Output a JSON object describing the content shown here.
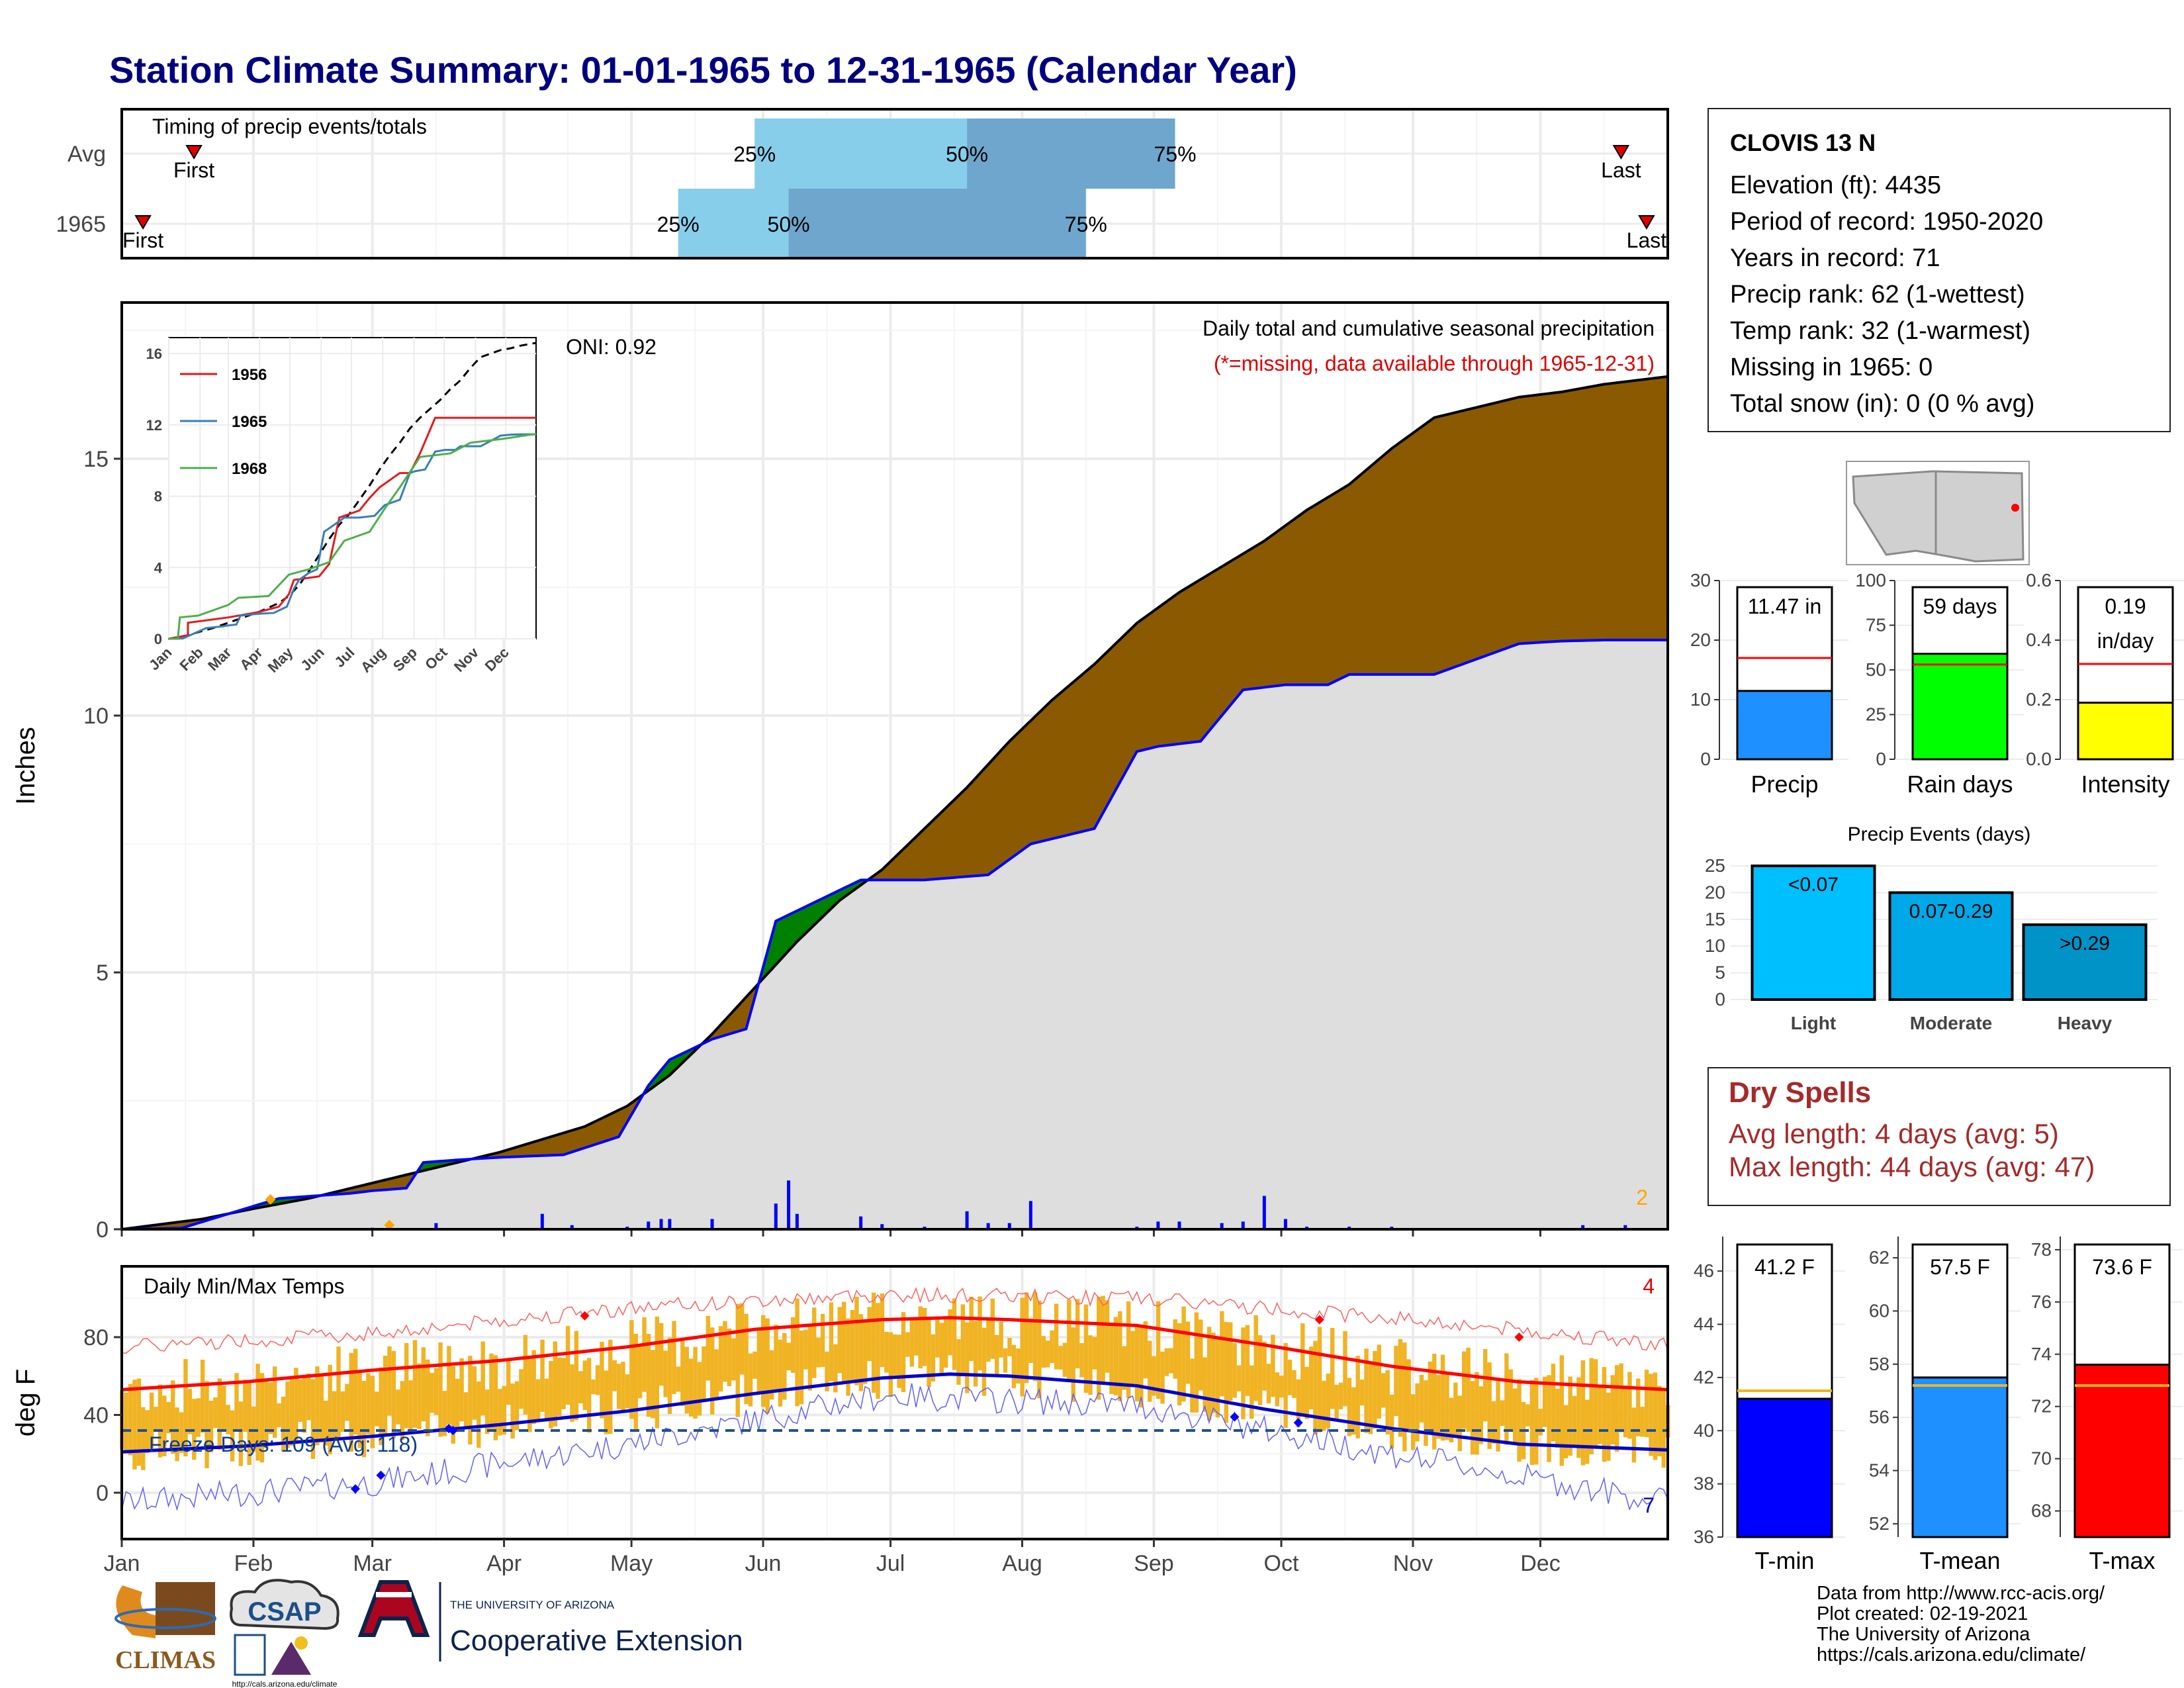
{
  "page": {
    "title": "Station Climate Summary: 01-01-1965 to 12-31-1965 (Calendar Year)"
  },
  "timing_panel": {
    "title": "Timing of precip events/totals",
    "rows": [
      "Avg",
      "1965"
    ],
    "first_label": "First",
    "last_label": "Last",
    "pct_labels": [
      "25%",
      "50%",
      "75%"
    ],
    "avg": {
      "first_day": 18,
      "p25": 150,
      "p50": 200,
      "p75": 249,
      "last_day": 354
    },
    "y1965": {
      "first_day": 6,
      "p25": 132,
      "p50": 158,
      "p75": 228,
      "last_day": 360
    }
  },
  "precip_panel": {
    "ylabel": "Inches",
    "title": "Daily total and cumulative seasonal precipitation",
    "note": "(*=missing, data available through 1965-12-31)",
    "oni": "ONI: 0.92",
    "corner_count": "2",
    "yticks": [
      "0",
      "5",
      "10",
      "15"
    ]
  },
  "inset": {
    "yticks": [
      "0",
      "4",
      "8",
      "12",
      "16"
    ],
    "months": [
      "Jan",
      "Feb",
      "Mar",
      "Apr",
      "May",
      "Jun",
      "Jul",
      "Aug",
      "Sep",
      "Oct",
      "Nov",
      "Dec"
    ],
    "legend": [
      "1956",
      "1965",
      "1968"
    ]
  },
  "temp_panel": {
    "ylabel": "deg F",
    "title": "Daily Min/Max Temps",
    "freeze_days": "Freeze Days: 109 (Avg: 118)",
    "count_hot": "4",
    "count_cold": "7",
    "yticks": [
      "0",
      "40",
      "80"
    ]
  },
  "months": [
    "Jan",
    "Feb",
    "Mar",
    "Apr",
    "May",
    "Jun",
    "Jul",
    "Aug",
    "Sep",
    "Oct",
    "Nov",
    "Dec"
  ],
  "station": {
    "name": "CLOVIS 13 N",
    "lines": [
      "Elevation (ft): 4435",
      "Period of record: 1950-2020",
      "Years in record: 71",
      "Precip rank: 62 (1-wettest)",
      "Temp rank: 32 (1-warmest)",
      "Missing in 1965: 0",
      "Total snow (in): 0 (0 % avg)"
    ]
  },
  "summary_bars": [
    {
      "label": "Precip",
      "value_text": "11.47 in",
      "value": 11.47,
      "avg": 17,
      "ymax": 30,
      "yticks": [
        "0",
        "10",
        "20",
        "30"
      ],
      "color": "#1e90ff"
    },
    {
      "label": "Rain days",
      "value_text": "59 days",
      "value": 59,
      "avg": 53,
      "ymax": 100,
      "yticks": [
        "0",
        "25",
        "50",
        "75",
        "100"
      ],
      "color": "#00ff00"
    },
    {
      "label": "Intensity",
      "value_text": "0.19\nin/day",
      "value": 0.19,
      "avg": 0.32,
      "ymax": 0.6,
      "yticks": [
        "0.0",
        "0.2",
        "0.4",
        "0.6"
      ],
      "color": "#ffff00"
    }
  ],
  "events": {
    "title": "Precip Events (days)",
    "yticks": [
      "0",
      "5",
      "10",
      "15",
      "20",
      "25"
    ],
    "bars": [
      {
        "label": "Light",
        "value": 25,
        "text": "<0.07",
        "color": "#00bfff"
      },
      {
        "label": "Moderate",
        "value": 20,
        "text": "0.07-0.29",
        "color": "#00a8e8"
      },
      {
        "label": "Heavy",
        "value": 14,
        "text": ">0.29",
        "color": "#0093c8"
      }
    ]
  },
  "dry_spells": {
    "title": "Dry Spells",
    "avg_line": "Avg length: 4 days (avg: 5)",
    "max_line": "Max length: 44 days (avg: 47)"
  },
  "temp_bars": [
    {
      "label": "T-min",
      "value_text": "41.2 F",
      "value": 41.2,
      "avg": 41.5,
      "ymin": 36,
      "ymax": 47,
      "yticks": [
        "36",
        "38",
        "40",
        "42",
        "44",
        "46"
      ],
      "tick_vals": [
        36,
        38,
        40,
        42,
        44,
        46
      ],
      "color": "#0000ff"
    },
    {
      "label": "T-mean",
      "value_text": "57.5 F",
      "value": 57.5,
      "avg": 57.2,
      "ymin": 51.5,
      "ymax": 62.5,
      "yticks": [
        "52",
        "54",
        "56",
        "58",
        "60",
        "62"
      ],
      "tick_vals": [
        52,
        54,
        56,
        58,
        60,
        62
      ],
      "color": "#1e90ff"
    },
    {
      "label": "T-max",
      "value_text": "73.6 F",
      "value": 73.6,
      "avg": 72.8,
      "ymin": 67,
      "ymax": 78.2,
      "yticks": [
        "68",
        "70",
        "72",
        "74",
        "76",
        "78"
      ],
      "tick_vals": [
        68,
        70,
        72,
        74,
        76,
        78
      ],
      "color": "#ff0000"
    }
  ],
  "credits": [
    "Data from http://www.rcc-acis.org/",
    "Plot created: 02-19-2021",
    "The University of Arizona",
    "https://cals.arizona.edu/climate/"
  ],
  "logos": {
    "climas": "CLIMAS",
    "csap": "CSAP",
    "csap_url": "http://cals.arizona.edu/climate",
    "ua_top": "THE UNIVERSITY OF ARIZONA",
    "ua_main": "Cooperative Extension"
  },
  "chart_data": [
    {
      "type": "area",
      "title": "Daily total and cumulative seasonal precipitation",
      "ylabel": "Inches",
      "ylim": [
        0,
        18
      ],
      "x_units": "day of year",
      "series": [
        {
          "name": "",
          "x": [
            1,
            20,
            32,
            45,
            60,
            75,
            90,
            100,
            110,
            120,
            130,
            140,
            150,
            160,
            170,
            180,
            190,
            200,
            210,
            220,
            230,
            240,
            250,
            260,
            270,
            280,
            290,
            300,
            310,
            320,
            330,
            340,
            350,
            365
          ],
          "values": [
            0,
            0.2,
            0.4,
            0.6,
            0.9,
            1.2,
            1.5,
            1.75,
            2.0,
            2.4,
            3.0,
            3.8,
            4.7,
            5.6,
            6.4,
            7.0,
            7.8,
            8.6,
            9.5,
            10.3,
            11.0,
            11.8,
            12.4,
            12.9,
            13.4,
            14.0,
            14.5,
            15.2,
            15.8,
            16.0,
            16.2,
            16.3,
            16.45,
            16.6
          ]
        },
        {
          "name": "",
          "x": [
            1,
            15,
            38,
            55,
            60,
            68,
            72,
            80,
            90,
            105,
            118,
            125,
            130,
            140,
            148,
            155,
            165,
            175,
            180,
            190,
            205,
            215,
            230,
            240,
            245,
            255,
            265,
            275,
            285,
            290,
            300,
            310,
            330,
            340,
            350,
            365
          ],
          "values": [
            0,
            0.02,
            0.6,
            0.7,
            0.75,
            0.8,
            1.3,
            1.35,
            1.4,
            1.45,
            1.8,
            2.8,
            3.3,
            3.7,
            3.9,
            6.0,
            6.4,
            6.8,
            6.8,
            6.8,
            6.9,
            7.5,
            7.8,
            9.3,
            9.4,
            9.5,
            10.5,
            10.6,
            10.6,
            10.8,
            10.8,
            10.8,
            11.4,
            11.45,
            11.47,
            11.47
          ]
        },
        {
          "name": "daily precipitation",
          "x": [
            45,
            60,
            75,
            100,
            107,
            120,
            125,
            128,
            130,
            140,
            155,
            158,
            160,
            175,
            180,
            190,
            200,
            205,
            210,
            215,
            240,
            245,
            250,
            260,
            265,
            270,
            275,
            280,
            290,
            300,
            345,
            355
          ],
          "values": [
            0.02,
            0.03,
            0.12,
            0.3,
            0.08,
            0.05,
            0.15,
            0.2,
            0.2,
            0.2,
            0.5,
            0.95,
            0.3,
            0.25,
            0.1,
            0.05,
            0.35,
            0.12,
            0.12,
            0.55,
            0.05,
            0.15,
            0.15,
            0.12,
            0.15,
            0.65,
            0.2,
            0.05,
            0.05,
            0.05,
            0.08,
            0.08
          ]
        }
      ]
    },
    {
      "type": "line",
      "ylabel": "deg F",
      "ylim": [
        -15,
        115
      ],
      "x_units": "day of year",
      "series": [
        {
          "name": "",
          "x": [
            1,
            30,
            60,
            90,
            120,
            150,
            180,
            196,
            210,
            240,
            270,
            300,
            330,
            365
          ],
          "values": [
            53,
            57,
            63,
            68,
            75,
            84,
            89,
            90,
            89,
            86,
            76,
            65,
            57,
            53
          ]
        },
        {
          "name": "",
          "x": [
            1,
            30,
            60,
            90,
            120,
            150,
            180,
            196,
            210,
            240,
            270,
            300,
            330,
            365
          ],
          "values": [
            21,
            24,
            29,
            35,
            42,
            51,
            59,
            61,
            60,
            55,
            43,
            33,
            25,
            22
          ]
        },
        {
          "name": "",
          "x": [
            1,
            60,
            120,
            180,
            240,
            300,
            365
          ],
          "values": [
            75,
            82,
            95,
            102,
            100,
            90,
            76
          ]
        },
        {
          "name": "",
          "x": [
            1,
            60,
            120,
            180,
            240,
            300,
            365
          ],
          "values": [
            -5,
            5,
            25,
            50,
            45,
            20,
            -5
          ]
        }
      ]
    }
  ]
}
